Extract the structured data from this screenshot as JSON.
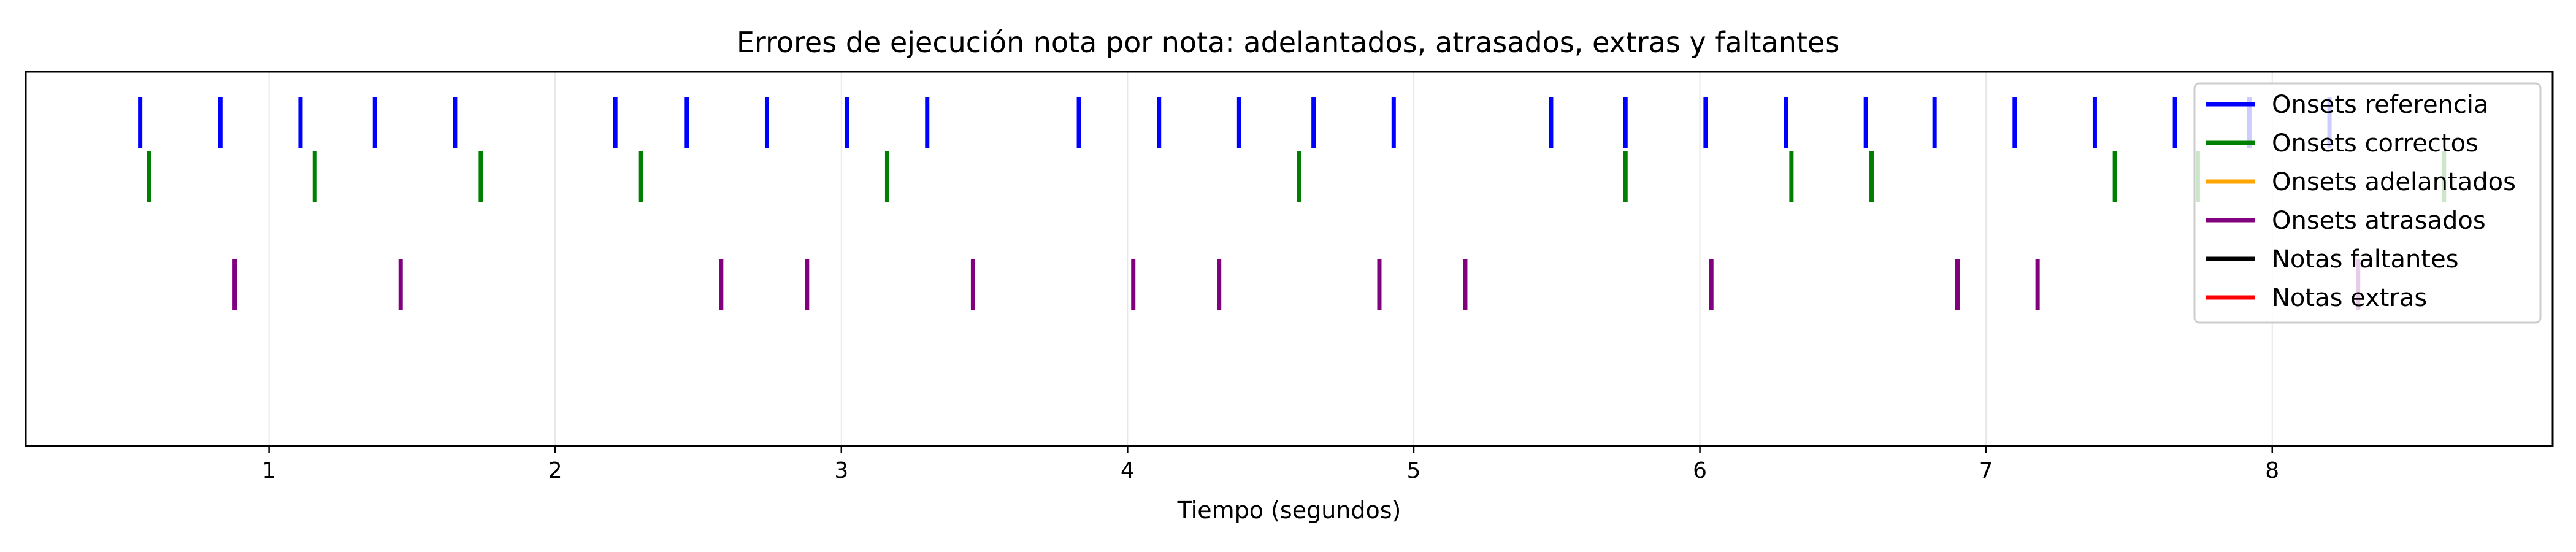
{
  "chart_data": {
    "type": "event-raster",
    "title": "Errores de ejecución nota por nota: adelantados, atrasados, extras y faltantes",
    "xlabel": "Tiempo (segundos)",
    "ylabel": "",
    "xlim": [
      0.15,
      8.98
    ],
    "x_ticks": [
      1,
      2,
      3,
      4,
      5,
      6,
      7,
      8
    ],
    "grid": "vertical",
    "legend_position": "top-right",
    "series": [
      {
        "name": "Onsets referencia",
        "color": "#0000ff",
        "row": 1,
        "x": [
          0.55,
          0.83,
          1.11,
          1.37,
          1.65,
          2.21,
          2.46,
          2.74,
          3.02,
          3.3,
          3.83,
          4.11,
          4.39,
          4.65,
          4.93,
          5.48,
          5.74,
          6.02,
          6.3,
          6.58,
          6.82,
          7.1,
          7.38,
          7.66,
          7.92,
          8.2
        ]
      },
      {
        "name": "Onsets correctos",
        "color": "#008000",
        "row": 2,
        "x": [
          0.58,
          1.16,
          1.74,
          2.3,
          3.16,
          4.6,
          5.74,
          6.32,
          6.6,
          7.45,
          7.74,
          8.6
        ]
      },
      {
        "name": "Onsets adelantados",
        "color": "#ffa500",
        "row": 3,
        "x": []
      },
      {
        "name": "Onsets atrasados",
        "color": "#800080",
        "row": 3,
        "x": [
          0.88,
          1.46,
          2.58,
          2.88,
          3.46,
          4.02,
          4.32,
          4.88,
          5.18,
          6.04,
          6.9,
          7.18,
          8.3
        ]
      },
      {
        "name": "Notas faltantes",
        "color": "#000000",
        "row": 4,
        "x": []
      },
      {
        "name": "Notas extras",
        "color": "#ff0000",
        "row": 4,
        "x": []
      }
    ]
  }
}
